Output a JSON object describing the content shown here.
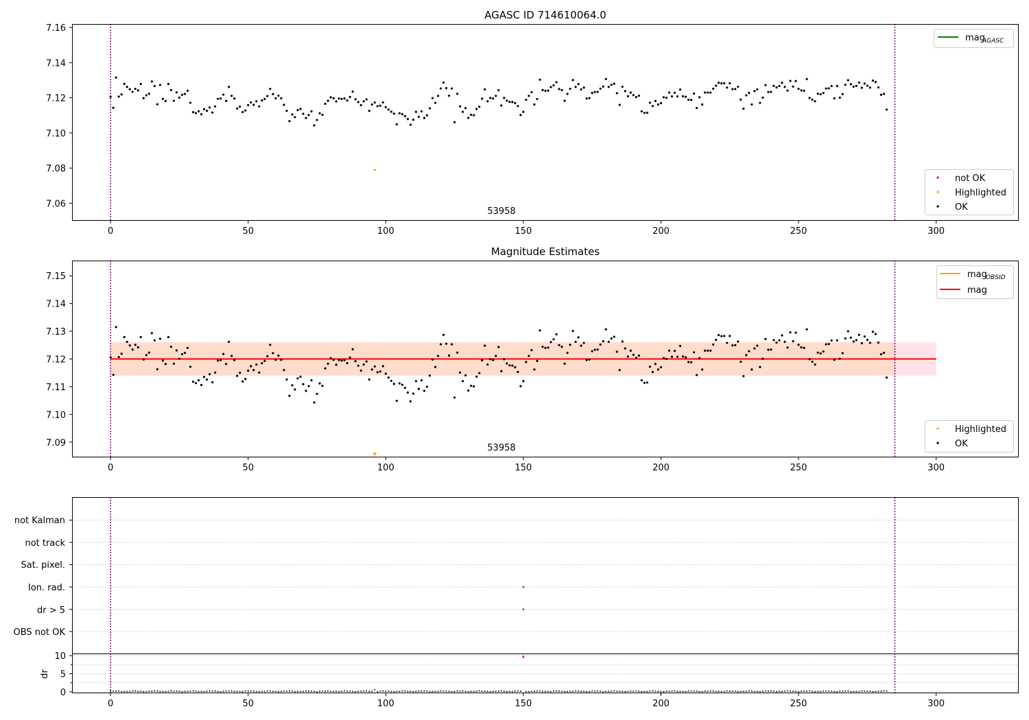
{
  "colors": {
    "ok": "#000000",
    "not_ok": "#ff0000",
    "highlighted": "#ffa500",
    "mag_agasc_line": "#008000",
    "mag_obsid_line": "#ffa500",
    "mag_line": "#ff0000",
    "obs_boundary": "#800080",
    "band_obsid": "#ffdccc",
    "band_mag": "#ffe3e8"
  },
  "obsid_label": "53958",
  "chart_data": [
    {
      "type": "scatter",
      "title": "AGASC ID 714610064.0",
      "xlim": [
        -14,
        330
      ],
      "ylim": [
        7.05,
        7.162
      ],
      "xticks": [
        0,
        50,
        100,
        150,
        200,
        250,
        300
      ],
      "xtick_labels": [
        "0",
        "50",
        "100",
        "150",
        "200",
        "250",
        "300"
      ],
      "yticks": [
        7.06,
        7.08,
        7.1,
        7.12,
        7.14,
        7.16
      ],
      "ytick_labels": [
        "7.06",
        "7.08",
        "7.10",
        "7.12",
        "7.14",
        "7.16"
      ],
      "obs_boundaries": [
        0,
        285
      ],
      "obsid_annotation": {
        "x": 142,
        "text": "53958"
      },
      "highlighted_points": [
        {
          "x": 96,
          "y": 7.079
        }
      ],
      "legend_upper": {
        "position": "upper right",
        "entries": [
          {
            "label": "mag",
            "subscript": "AGASC",
            "kind": "line",
            "color_key": "mag_agasc_line"
          }
        ]
      },
      "legend_lower": {
        "position": "lower right",
        "entries": [
          {
            "label": "not OK",
            "kind": "dot",
            "color_key": "not_ok"
          },
          {
            "label": "Highlighted",
            "kind": "dot",
            "color_key": "highlighted"
          },
          {
            "label": "OK",
            "kind": "dot",
            "color_key": "ok"
          }
        ]
      },
      "grid": false
    },
    {
      "type": "scatter",
      "title": "Magnitude Estimates",
      "xlim": [
        -14,
        330
      ],
      "ylim": [
        7.0845,
        7.1555
      ],
      "xticks": [
        0,
        50,
        100,
        150,
        200,
        250,
        300
      ],
      "xtick_labels": [
        "0",
        "50",
        "100",
        "150",
        "200",
        "250",
        "300"
      ],
      "yticks": [
        7.09,
        7.1,
        7.11,
        7.12,
        7.13,
        7.14,
        7.15
      ],
      "ytick_labels": [
        "7.09",
        "7.10",
        "7.11",
        "7.12",
        "7.13",
        "7.14",
        "7.15"
      ],
      "obs_boundaries": [
        0,
        285
      ],
      "obsid_annotation": {
        "x": 142,
        "text": "53958"
      },
      "mag_line": {
        "y": 7.12,
        "x_range": [
          0,
          300
        ]
      },
      "mag_obsid_line": {
        "y": 7.12,
        "x_range": [
          0,
          285
        ]
      },
      "mag_band": {
        "y_range": [
          7.114,
          7.126
        ],
        "x_range": [
          0,
          300
        ]
      },
      "mag_obsid_band": {
        "y_range": [
          7.114,
          7.126
        ],
        "x_range": [
          0,
          285
        ]
      },
      "highlighted_offscale_marker": {
        "x": 96
      },
      "legend_upper": {
        "position": "upper right",
        "entries": [
          {
            "label": "mag",
            "subscript": "OBSID",
            "kind": "line",
            "color_key": "mag_obsid_line"
          },
          {
            "label": "mag",
            "kind": "line",
            "color_key": "mag_line"
          }
        ]
      },
      "legend_lower": {
        "position": "lower right",
        "entries": [
          {
            "label": "Highlighted",
            "kind": "dot",
            "color_key": "highlighted"
          },
          {
            "label": "OK",
            "kind": "dot",
            "color_key": "ok"
          }
        ]
      },
      "grid": false
    },
    {
      "type": "scatter",
      "title": "",
      "flag_rows": [
        "not Kalman",
        "not track",
        "Sat. pixel.",
        "Ion. rad.",
        "dr > 5",
        "OBS not OK"
      ],
      "flag_points": [
        {
          "flag": "Ion. rad.",
          "x": 150
        },
        {
          "flag": "dr > 5",
          "x": 150
        }
      ],
      "xlim": [
        -14,
        330
      ],
      "obs_boundaries": [
        0,
        285
      ],
      "grid": true
    },
    {
      "type": "scatter",
      "title": "",
      "ylabel": "dr",
      "xlim": [
        -14,
        330
      ],
      "ylim": [
        -0.4,
        10.6
      ],
      "yticks": [
        0,
        5,
        10
      ],
      "ytick_labels": [
        "0",
        "5",
        "10"
      ],
      "xticks": [
        0,
        50,
        100,
        150,
        200,
        250,
        300
      ],
      "xtick_labels": [
        "0",
        "50",
        "100",
        "150",
        "200",
        "250",
        "300"
      ],
      "obs_boundaries": [
        0,
        285
      ],
      "dr_outlier": {
        "x": 150,
        "y": 9.8
      },
      "dr_bump": {
        "x": 96,
        "y": 0.6
      },
      "grid": true
    }
  ],
  "series_mag": {
    "name": "OK",
    "x_start": 0,
    "x_step": 1,
    "values": [
      7.1206,
      7.1143,
      7.1315,
      7.1207,
      7.1219,
      7.1279,
      7.1262,
      7.1249,
      7.1234,
      7.1251,
      7.1242,
      7.1279,
      7.1198,
      7.1214,
      7.1223,
      7.1293,
      7.1267,
      7.1163,
      7.1273,
      7.1194,
      7.1182,
      7.1279,
      7.1244,
      7.1183,
      7.1231,
      7.1201,
      7.1217,
      7.1222,
      7.124,
      7.1172,
      7.1118,
      7.1113,
      7.1123,
      7.1106,
      7.1135,
      7.1126,
      7.1145,
      7.1116,
      7.1151,
      7.1194,
      7.1196,
      7.1218,
      7.1182,
      7.1262,
      7.1211,
      7.1196,
      7.1139,
      7.115,
      7.1119,
      7.1128,
      7.1158,
      7.1174,
      7.116,
      7.118,
      7.1151,
      7.1185,
      7.1193,
      7.121,
      7.1251,
      7.1221,
      7.1197,
      7.1212,
      7.1197,
      7.116,
      7.1126,
      7.1067,
      7.1105,
      7.109,
      7.113,
      7.1136,
      7.1109,
      7.1085,
      7.1102,
      7.1123,
      7.1043,
      7.1074,
      7.1112,
      7.1103,
      7.1166,
      7.1183,
      7.1203,
      7.1197,
      7.1179,
      7.1196,
      7.1194,
      7.1196,
      7.1185,
      7.1205,
      7.1235,
      7.1192,
      7.1176,
      7.1158,
      7.118,
      7.1191,
      7.1126,
      7.1162,
      7.1173,
      7.1152,
      7.1155,
      7.1174,
      7.1147,
      7.1133,
      7.1121,
      7.111,
      7.1049,
      7.1112,
      7.1107,
      7.1096,
      7.1079,
      7.1047,
      7.1075,
      7.112,
      7.1092,
      7.1123,
      7.1085,
      7.11,
      7.114,
      7.1198,
      7.1171,
      7.1211,
      7.1253,
      7.1287,
      7.1255,
      7.1212,
      7.1253,
      7.1061,
      7.1223,
      7.1151,
      7.112,
      7.1141,
      7.1086,
      7.1103,
      7.1101,
      7.1136,
      7.1149,
      7.1195,
      7.1248,
      7.118,
      7.1199,
      7.1196,
      7.1211,
      7.1243,
      7.1156,
      7.1199,
      7.1184,
      7.1177,
      7.1176,
      7.117,
      7.1153,
      7.1102,
      7.112,
      7.1189,
      7.1211,
      7.1232,
      7.1162,
      7.1193,
      7.1303,
      7.1244,
      7.124,
      7.1241,
      7.1261,
      7.1271,
      7.1289,
      7.125,
      7.1244,
      7.1183,
      7.1222,
      7.1251,
      7.1301,
      7.1262,
      7.1278,
      7.1248,
      7.1258,
      7.1196,
      7.1198,
      7.1228,
      7.1233,
      7.1234,
      7.1252,
      7.1264,
      7.1307,
      7.1262,
      7.1274,
      7.128,
      7.1226,
      7.116,
      7.1263,
      7.1238,
      7.1209,
      7.123,
      7.1215,
      7.1204,
      7.1212,
      7.1123,
      7.1114,
      7.1115,
      7.1172,
      7.1153,
      7.1182,
      7.1162,
      7.117,
      7.1203,
      7.12,
      7.123,
      7.1208,
      7.1229,
      7.1208,
      7.1247,
      7.1209,
      7.1206,
      7.1189,
      7.1188,
      7.1224,
      7.1142,
      7.1203,
      7.1162,
      7.123,
      7.123,
      7.123,
      7.1252,
      7.1269,
      7.1286,
      7.1282,
      7.1283,
      7.1258,
      7.1283,
      7.1249,
      7.125,
      7.1263,
      7.119,
      7.1138,
      7.1214,
      7.1228,
      7.1162,
      7.1238,
      7.1248,
      7.1171,
      7.1201,
      7.1272,
      7.1233,
      7.1234,
      7.1268,
      7.1259,
      7.1267,
      7.1285,
      7.1262,
      7.1241,
      7.1296,
      7.1264,
      7.1295,
      7.1251,
      7.1242,
      7.124,
      7.1307,
      7.1199,
      7.119,
      7.118,
      7.1223,
      7.122,
      7.1227,
      7.1253,
      7.1254,
      7.1267,
      7.1197,
      7.1267,
      7.1201,
      7.1221,
      7.1274,
      7.13,
      7.1277,
      7.1263,
      7.1268,
      7.1287,
      7.1257,
      7.1281,
      7.1269,
      7.1258,
      7.1298,
      7.129,
      7.1259,
      7.1217,
      7.1222,
      7.1133
    ]
  }
}
